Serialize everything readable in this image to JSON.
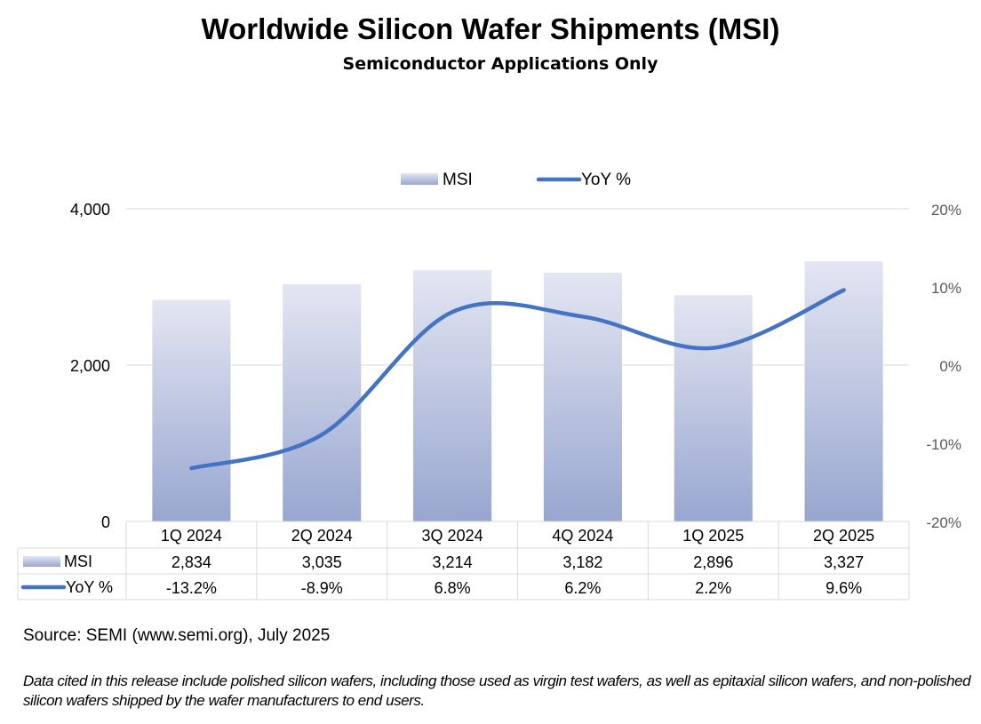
{
  "chart_data": {
    "type": "bar",
    "title": "Worldwide Silicon Wafer Shipments (MSI)",
    "subtitle": "Semiconductor Applications Only",
    "categories": [
      "1Q 2024",
      "2Q 2024",
      "3Q 2024",
      "4Q 2024",
      "1Q 2025",
      "2Q 2025"
    ],
    "series": [
      {
        "name": "MSI",
        "type": "bar",
        "axis": "left",
        "values": [
          2834,
          3035,
          3214,
          3182,
          2896,
          3327
        ],
        "labels": [
          "2,834",
          "3,035",
          "3,214",
          "3,182",
          "2,896",
          "3,327"
        ]
      },
      {
        "name": "YoY %",
        "type": "line",
        "axis": "right",
        "values": [
          -13.2,
          -8.9,
          6.8,
          6.2,
          2.2,
          9.6
        ],
        "labels": [
          "-13.2%",
          "-8.9%",
          "6.8%",
          "6.2%",
          "2.2%",
          "9.6%"
        ]
      }
    ],
    "ylim": [
      0,
      4000
    ],
    "y_ticks": [
      "0",
      "2,000",
      "4,000"
    ],
    "y2lim": [
      -20,
      20
    ],
    "y2_ticks": [
      "-20%",
      "-10%",
      "0%",
      "10%",
      "20%"
    ],
    "grid": true,
    "legend_position": "top-center",
    "data_table": true
  },
  "colors": {
    "bar_top": "#e3e6f2",
    "bar_bottom": "#98a6d0",
    "line": "#4472c4",
    "grid": "#d9d9d9",
    "axis_text": "#595959",
    "table_border": "#d9d9d9"
  },
  "footer": {
    "source": "Source: SEMI (www.semi.org), July 2025",
    "note": "Data cited in this release include polished silicon wafers, including those used as virgin test wafers, as well as epitaxial silicon wafers, and non-polished silicon wafers shipped by the wafer manufacturers to end users."
  }
}
